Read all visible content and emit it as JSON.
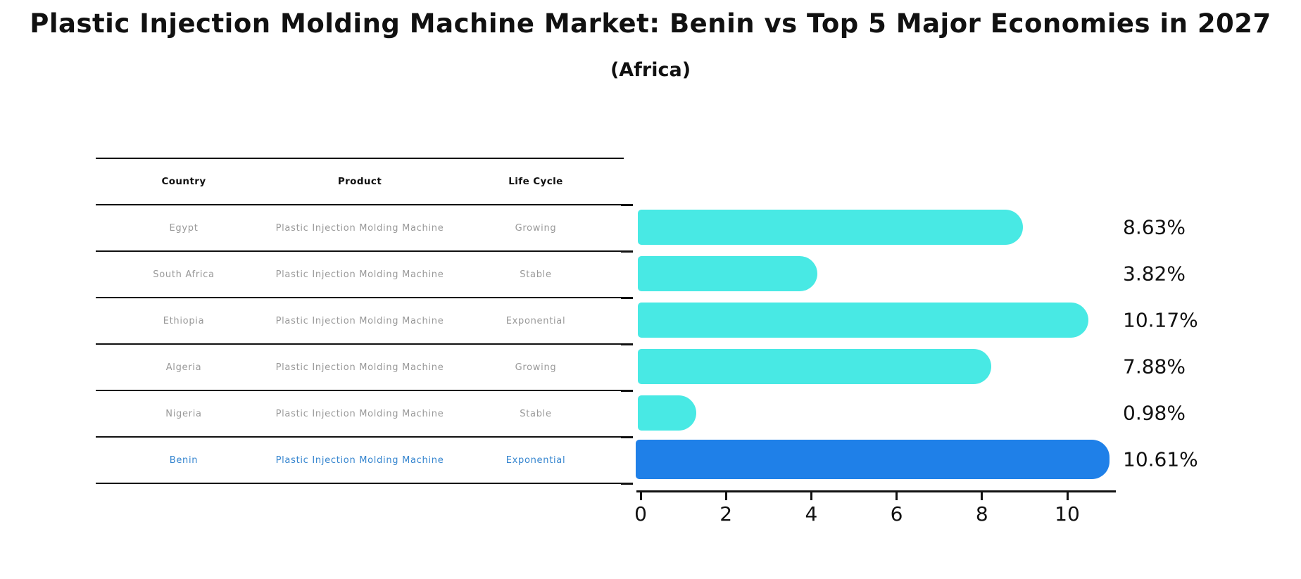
{
  "header": {
    "title": "Plastic Injection Molding Machine Market: Benin vs Top 5 Major Economies in 2027",
    "subtitle": "(Africa)"
  },
  "table": {
    "columns": [
      "Country",
      "Product",
      "Life Cycle"
    ],
    "rows": [
      {
        "country": "Egypt",
        "product": "Plastic Injection Molding Machine",
        "life_cycle": "Growing",
        "highlight": false
      },
      {
        "country": "South Africa",
        "product": "Plastic Injection Molding Machine",
        "life_cycle": "Stable",
        "highlight": false
      },
      {
        "country": "Ethiopia",
        "product": "Plastic Injection Molding Machine",
        "life_cycle": "Exponential",
        "highlight": false
      },
      {
        "country": "Algeria",
        "product": "Plastic Injection Molding Machine",
        "life_cycle": "Growing",
        "highlight": false
      },
      {
        "country": "Nigeria",
        "product": "Plastic Injection Molding Machine",
        "life_cycle": "Stable",
        "highlight": false
      },
      {
        "country": "Benin",
        "product": "Plastic Injection Molding Machine",
        "life_cycle": "Exponential",
        "highlight": true
      }
    ]
  },
  "chart_data": {
    "type": "bar",
    "orientation": "horizontal",
    "title": "Plastic Injection Molding Machine Market: Benin vs Top 5 Major Economies in 2027 (Africa)",
    "categories": [
      "Egypt",
      "South Africa",
      "Ethiopia",
      "Algeria",
      "Nigeria",
      "Benin"
    ],
    "values": [
      8.63,
      3.82,
      10.17,
      7.88,
      0.98,
      10.61
    ],
    "value_labels": [
      "8.63%",
      "3.82%",
      "10.17%",
      "7.88%",
      "0.98%",
      "10.61%"
    ],
    "xlabel": "",
    "ylabel": "",
    "xlim": [
      0,
      11.14
    ],
    "xticks": [
      0,
      2,
      4,
      6,
      8,
      10
    ],
    "xtick_labels": [
      "0",
      "2",
      "4",
      "6",
      "8",
      "10"
    ],
    "grid": false,
    "legend": false,
    "bar_color": "#48E9E4",
    "highlight_color": "#1F80E8",
    "highlight_index": 5,
    "highlight_border_style": "dotted"
  },
  "colors": {
    "background": "#ffffff",
    "text": "#111111",
    "table_text": "#999999",
    "highlight_text": "#3585CF",
    "bar": "#48E9E4",
    "highlight_bar": "#1F80E8"
  }
}
